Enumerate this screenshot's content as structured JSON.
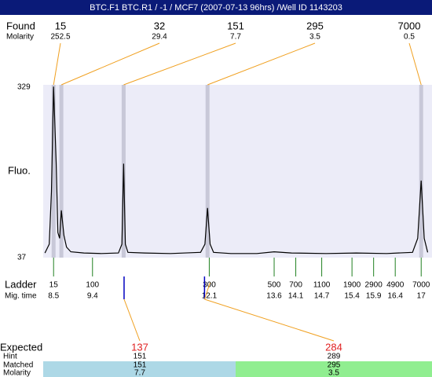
{
  "chart_data": {
    "type": "electropherogram",
    "title": "BTC.F1  BTC.R1 / -1 / MCF7 (2007-07-13 96hrs) /Well ID 1143203",
    "ylabel": "Fluo.",
    "ylim": [
      37,
      329
    ],
    "yticks": [
      329,
      37
    ],
    "xlim": [
      8.26,
      17.25
    ],
    "trace": {
      "x": [
        8.3,
        8.4,
        8.45,
        8.5,
        8.56,
        8.6,
        8.64,
        8.68,
        8.74,
        8.8,
        8.9,
        9.2,
        9.6,
        10.0,
        10.08,
        10.12,
        10.16,
        10.22,
        10.6,
        11.2,
        11.9,
        12.0,
        12.06,
        12.12,
        12.2,
        12.6,
        13.2,
        13.6,
        14.0,
        14.8,
        15.5,
        16.2,
        16.8,
        16.92,
        17.0,
        17.07,
        17.15
      ],
      "y": [
        45,
        60,
        150,
        330,
        200,
        80,
        70,
        118,
        75,
        55,
        47,
        45,
        44,
        45,
        60,
        198,
        60,
        46,
        45,
        44,
        46,
        60,
        122,
        60,
        46,
        44,
        44,
        47,
        45,
        44,
        45,
        44,
        46,
        70,
        169,
        70,
        46
      ]
    },
    "found": {
      "label": "Found",
      "sublabel": "Molarity",
      "sizes": [
        15,
        32,
        151,
        295,
        7000
      ],
      "molarity": [
        252.5,
        29.4,
        7.7,
        3.5,
        0.5
      ],
      "times": [
        8.5,
        8.68,
        10.12,
        12.06,
        17
      ]
    },
    "ladder": {
      "label": "Ladder",
      "sublabel": "Mig. time",
      "sizes": [
        15,
        100,
        300,
        500,
        700,
        1100,
        1900,
        2900,
        4900,
        7000
      ],
      "times": [
        8.5,
        9.4,
        12.1,
        13.6,
        14.1,
        14.7,
        15.4,
        15.9,
        16.4,
        17
      ]
    },
    "expected": {
      "label": "Expected",
      "hint_label": "Hint",
      "matched_label": "Matched",
      "molarity_label": "Molarity",
      "values": [
        137,
        284
      ],
      "hint": [
        151,
        289
      ],
      "matched": [
        151,
        295
      ],
      "molarity": [
        7.7,
        3.5
      ],
      "marker_times": [
        10.13,
        11.99
      ]
    }
  }
}
